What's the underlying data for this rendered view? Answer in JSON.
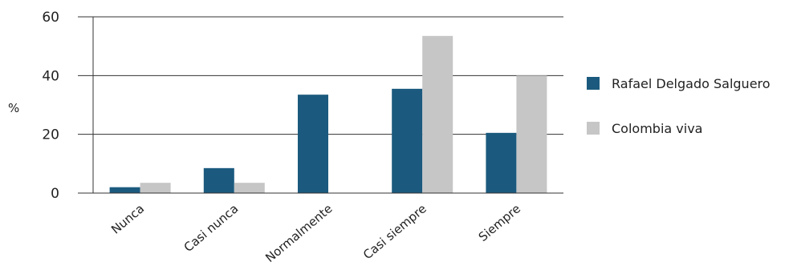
{
  "chart_data": {
    "type": "bar",
    "ylabel": "%",
    "ylim": [
      0,
      60
    ],
    "yticks": [
      0,
      20,
      40,
      60
    ],
    "grid": true,
    "legend_position": "right",
    "categories": [
      "Nunca",
      "Casi nunca",
      "Normalmente",
      "Casi siempre",
      "Siempre"
    ],
    "series": [
      {
        "name": "Rafael Delgado Salguero",
        "color": "#1b5a7e",
        "values": [
          2,
          8.5,
          33.5,
          35.5,
          20.5
        ]
      },
      {
        "name": "Colombia viva",
        "color": "#c6c6c6",
        "values": [
          3.5,
          3.5,
          null,
          53.5,
          40
        ]
      }
    ]
  }
}
